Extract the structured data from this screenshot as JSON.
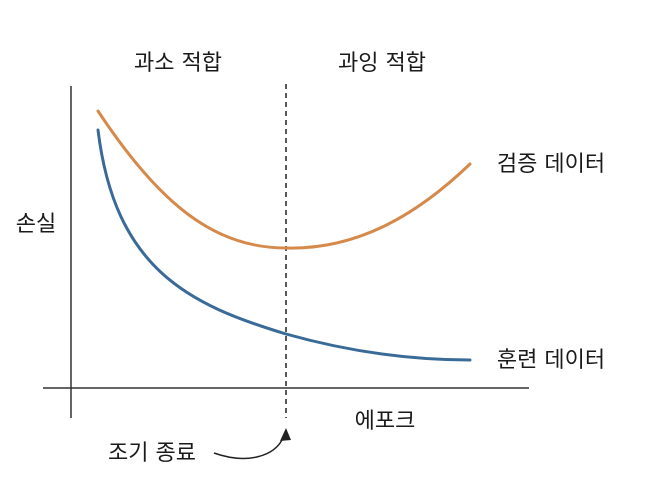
{
  "labels": {
    "underfitting": "과소 적합",
    "overfitting": "과잉 적합",
    "loss_axis": "손실",
    "epoch_axis": "에포크",
    "early_stopping": "조기 종료",
    "validation_data": "검증 데이터",
    "training_data": "훈련 데이터"
  },
  "colors": {
    "validation": "#d58a4b",
    "training": "#3a6a97",
    "axis": "#333333",
    "text": "#1a1a1a"
  }
}
